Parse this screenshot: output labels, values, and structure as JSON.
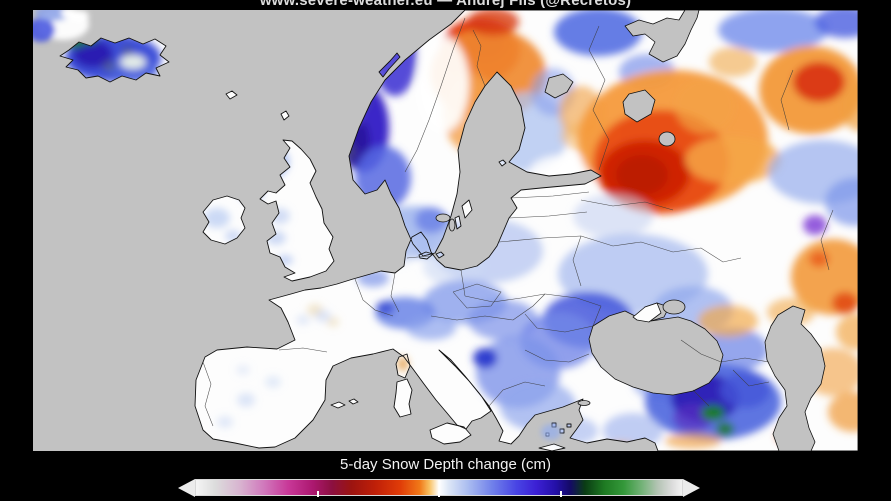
{
  "header": {
    "title": "www.severe-weather.eu — Andrej Flis (@Recretos)"
  },
  "colorbar": {
    "label": "5-day Snow Depth change (cm)",
    "ticks_pct": [
      25,
      50,
      75
    ],
    "stops": [
      {
        "p": 0.0,
        "c": "#f5f5f5"
      },
      {
        "p": 0.04,
        "c": "#dcdcdc"
      },
      {
        "p": 0.09,
        "c": "#d8b4d0"
      },
      {
        "p": 0.14,
        "c": "#d078bc"
      },
      {
        "p": 0.19,
        "c": "#c83898"
      },
      {
        "p": 0.24,
        "c": "#ac1870"
      },
      {
        "p": 0.28,
        "c": "#8c1040"
      },
      {
        "p": 0.32,
        "c": "#9c1410"
      },
      {
        "p": 0.37,
        "c": "#c02008"
      },
      {
        "p": 0.42,
        "c": "#e03c08"
      },
      {
        "p": 0.46,
        "c": "#f07818"
      },
      {
        "p": 0.48,
        "c": "#f8c060"
      },
      {
        "p": 0.5,
        "c": "#ffffff"
      },
      {
        "p": 0.52,
        "c": "#dce6f6"
      },
      {
        "p": 0.56,
        "c": "#aabcf0"
      },
      {
        "p": 0.61,
        "c": "#7080ea"
      },
      {
        "p": 0.66,
        "c": "#4844e4"
      },
      {
        "p": 0.7,
        "c": "#3c20d4"
      },
      {
        "p": 0.74,
        "c": "#2410a8"
      },
      {
        "p": 0.77,
        "c": "#140a66"
      },
      {
        "p": 0.8,
        "c": "#0a3c14"
      },
      {
        "p": 0.84,
        "c": "#1e7a22"
      },
      {
        "p": 0.88,
        "c": "#34983a"
      },
      {
        "p": 0.92,
        "c": "#78b47c"
      },
      {
        "p": 0.95,
        "c": "#b4c4b4"
      },
      {
        "p": 0.98,
        "c": "#dcdcdc"
      },
      {
        "p": 1.0,
        "c": "#f2f2f2"
      }
    ]
  },
  "map": {
    "sea_color": "#c2c2c2",
    "land_color": "#fdfdfd",
    "coast_color": "#111111",
    "border_color": "#3a3a3a",
    "blob_format": [
      "cx",
      "cy",
      "rx",
      "ry",
      "fill",
      "opacity"
    ],
    "blobs": [
      [
        447,
        40,
        40,
        32,
        "#e23410",
        1
      ],
      [
        452,
        32,
        22,
        18,
        "#c51c04",
        1
      ],
      [
        455,
        64,
        58,
        46,
        "#f08a32",
        0.92
      ],
      [
        436,
        102,
        26,
        40,
        "#f4a04a",
        0.8
      ],
      [
        460,
        12,
        26,
        14,
        "#d83c14",
        0.8
      ],
      [
        410,
        74,
        26,
        48,
        "#ffffff",
        0.92
      ],
      [
        362,
        46,
        22,
        40,
        "#4438d4",
        0.9
      ],
      [
        330,
        118,
        26,
        44,
        "#3a28c8",
        1
      ],
      [
        322,
        132,
        15,
        26,
        "#2a14a0",
        1
      ],
      [
        320,
        100,
        11,
        16,
        "#5a48d8",
        0.9
      ],
      [
        316,
        142,
        7,
        9,
        "#59606e",
        0.5
      ],
      [
        331,
        92,
        6,
        7,
        "#59606e",
        0.42
      ],
      [
        350,
        168,
        28,
        32,
        "#5668e2",
        0.85
      ],
      [
        382,
        222,
        42,
        26,
        "#a0b6ee",
        0.88
      ],
      [
        398,
        210,
        16,
        13,
        "#6076e6",
        0.7
      ],
      [
        495,
        122,
        40,
        40,
        "#b0c4f0",
        0.78
      ],
      [
        520,
        82,
        22,
        24,
        "#8aa0ec",
        0.6
      ],
      [
        548,
        102,
        22,
        26,
        "#f2a852",
        0.68
      ],
      [
        558,
        126,
        30,
        16,
        "#f4b868",
        0.6
      ],
      [
        532,
        163,
        36,
        18,
        "#ffffff",
        0.85
      ],
      [
        565,
        22,
        44,
        24,
        "#4a66e2",
        0.85
      ],
      [
        614,
        62,
        28,
        18,
        "#6a84e8",
        0.6
      ],
      [
        640,
        130,
        95,
        70,
        "#f59a3c",
        0.95
      ],
      [
        628,
        152,
        68,
        52,
        "#e84d12",
        0.95
      ],
      [
        612,
        163,
        45,
        33,
        "#cf2404",
        1
      ],
      [
        609,
        165,
        26,
        20,
        "#bc1c02",
        1
      ],
      [
        700,
        150,
        48,
        24,
        "#f5a848",
        0.8
      ],
      [
        672,
        96,
        30,
        28,
        "#f2a244",
        0.7
      ],
      [
        740,
        20,
        55,
        22,
        "#6a86ea",
        0.75
      ],
      [
        812,
        12,
        30,
        16,
        "#4a5ee0",
        0.8
      ],
      [
        700,
        52,
        24,
        15,
        "#f0a848",
        0.6
      ],
      [
        778,
        80,
        52,
        44,
        "#f2993a",
        0.95
      ],
      [
        786,
        72,
        26,
        20,
        "#da3610",
        0.95
      ],
      [
        827,
        97,
        20,
        24,
        "#f0a040",
        0.7
      ],
      [
        790,
        162,
        55,
        32,
        "#9cb2ee",
        0.75
      ],
      [
        822,
        192,
        30,
        24,
        "#7c96ea",
        0.7
      ],
      [
        800,
        267,
        42,
        38,
        "#f29a3c",
        0.9
      ],
      [
        812,
        293,
        13,
        11,
        "#e04510",
        0.85
      ],
      [
        786,
        249,
        10,
        8,
        "#e85014",
        0.7
      ],
      [
        823,
        322,
        20,
        18,
        "#f2a848",
        0.7
      ],
      [
        782,
        215,
        12,
        10,
        "#7a35d4",
        0.8
      ],
      [
        580,
        206,
        40,
        22,
        "#c6d2f2",
        0.6
      ],
      [
        455,
        241,
        55,
        32,
        "#b6c6f0",
        0.75
      ],
      [
        420,
        256,
        30,
        20,
        "#cdd8f4",
        0.6
      ],
      [
        364,
        241,
        20,
        14,
        "#c8d4f2",
        0.5
      ],
      [
        340,
        268,
        16,
        9,
        "#7e96e8",
        0.7
      ],
      [
        432,
        292,
        42,
        22,
        "#8098ea",
        0.75
      ],
      [
        470,
        310,
        35,
        20,
        "#7c92e8",
        0.7
      ],
      [
        372,
        303,
        30,
        16,
        "#6a84e6",
        0.85
      ],
      [
        352,
        298,
        9,
        7,
        "#3448d2",
        0.8
      ],
      [
        398,
        318,
        25,
        12,
        "#8aa2ec",
        0.7
      ],
      [
        600,
        264,
        75,
        40,
        "#a6baee",
        0.72
      ],
      [
        555,
        310,
        45,
        28,
        "#4458dc",
        0.85
      ],
      [
        610,
        336,
        48,
        28,
        "#5c72e2",
        0.85
      ],
      [
        525,
        331,
        38,
        28,
        "#7488e8",
        0.8
      ],
      [
        660,
        300,
        40,
        24,
        "#8ea6ec",
        0.7
      ],
      [
        700,
        340,
        35,
        22,
        "#6a80e6",
        0.7
      ],
      [
        640,
        374,
        40,
        18,
        "#8098ea",
        0.6
      ],
      [
        695,
        311,
        30,
        16,
        "#f2a848",
        0.68
      ],
      [
        485,
        362,
        42,
        36,
        "#7e94ea",
        0.8
      ],
      [
        452,
        348,
        12,
        10,
        "#2234cc",
        0.9
      ],
      [
        505,
        396,
        38,
        25,
        "#92a8ec",
        0.7
      ],
      [
        540,
        421,
        25,
        14,
        "#a0b4ee",
        0.6
      ],
      [
        680,
        392,
        68,
        38,
        "#4e66de",
        0.9
      ],
      [
        672,
        388,
        34,
        24,
        "#2b1cb4",
        0.9
      ],
      [
        660,
        408,
        20,
        14,
        "#5a30c0",
        0.7
      ],
      [
        680,
        403,
        12,
        8,
        "#1e7e22",
        0.95
      ],
      [
        692,
        419,
        9,
        7,
        "#227a26",
        0.9
      ],
      [
        712,
        380,
        25,
        18,
        "#4456d8",
        0.8
      ],
      [
        755,
        426,
        11,
        8,
        "#e23c10",
        0.9
      ],
      [
        660,
        431,
        28,
        8,
        "#f0a040",
        0.65
      ],
      [
        600,
        421,
        30,
        18,
        "#98aeec",
        0.6
      ],
      [
        588,
        438,
        14,
        6,
        "#f2aa4a",
        0.6
      ],
      [
        800,
        362,
        30,
        24,
        "#f2a040",
        0.6
      ],
      [
        820,
        402,
        25,
        20,
        "#f09838",
        0.7
      ],
      [
        758,
        302,
        24,
        14,
        "#f2a848",
        0.6
      ],
      [
        232,
        152,
        24,
        18,
        "#9cb4ee",
        0.85
      ],
      [
        218,
        182,
        12,
        10,
        "#8ca6ec",
        0.7
      ],
      [
        247,
        206,
        10,
        8,
        "#b6c8f0",
        0.6
      ],
      [
        243,
        228,
        10,
        7,
        "#b0c4f0",
        0.65
      ],
      [
        184,
        208,
        13,
        10,
        "#b6caf2",
        0.7
      ],
      [
        200,
        226,
        8,
        6,
        "#aec2f0",
        0.6
      ],
      [
        252,
        250,
        8,
        5,
        "#9cb4ee",
        0.6
      ],
      [
        282,
        300,
        8,
        6,
        "#e8d2a2",
        0.55
      ],
      [
        300,
        312,
        6,
        5,
        "#e8d2a2",
        0.5
      ],
      [
        290,
        306,
        8,
        6,
        "#bcccf2",
        0.5
      ],
      [
        270,
        310,
        7,
        5,
        "#c2d0f2",
        0.45
      ],
      [
        213,
        390,
        9,
        7,
        "#bccef2",
        0.5
      ],
      [
        240,
        372,
        8,
        6,
        "#c2d2f2",
        0.45
      ],
      [
        192,
        412,
        8,
        6,
        "#bccef2",
        0.45
      ],
      [
        210,
        360,
        7,
        5,
        "#c6d4f2",
        0.4
      ],
      [
        370,
        354,
        5,
        7,
        "#e09030",
        0.8
      ],
      [
        80,
        48,
        48,
        24,
        "#3c50d8",
        1
      ],
      [
        60,
        44,
        20,
        14,
        "#2a1cb0",
        0.95
      ],
      [
        100,
        60,
        25,
        12,
        "#4a62de",
        0.9
      ],
      [
        42,
        31,
        11,
        7,
        "#1a7a1e",
        0.95
      ],
      [
        57,
        29,
        7,
        5,
        "#1e8422",
        0.9
      ],
      [
        100,
        52,
        13,
        7,
        "#eef6e8",
        0.95
      ],
      [
        76,
        56,
        7,
        6,
        "#5a6070",
        0.5
      ],
      [
        94,
        40,
        6,
        5,
        "#565c6a",
        0.45
      ]
    ],
    "ice_blobs": [
      [
        30,
        14,
        26,
        16,
        "#ffffff",
        0.95
      ],
      [
        8,
        20,
        14,
        12,
        "#4a5ae0",
        0.9
      ],
      [
        20,
        3,
        18,
        8,
        "#88a0e8",
        0.85
      ],
      [
        46,
        6,
        10,
        6,
        "#ffffff",
        0.9
      ],
      [
        36,
        3,
        8,
        5,
        "#ffffff",
        1
      ],
      [
        518,
        422,
        10,
        8,
        "#92acee",
        0.7
      ]
    ]
  }
}
